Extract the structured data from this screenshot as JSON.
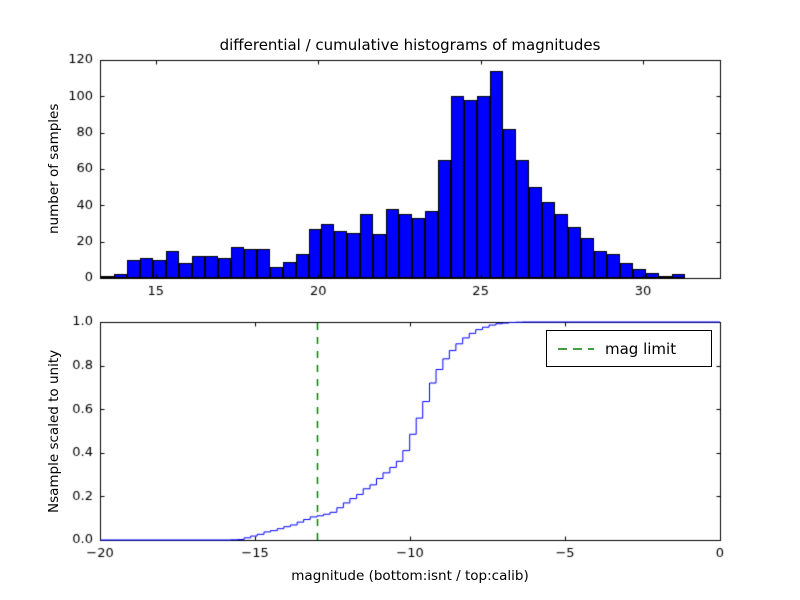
{
  "figure": {
    "background": "#ffffff",
    "frame_color": "#000000"
  },
  "chart_data": [
    {
      "type": "bar",
      "name": "differential-histogram",
      "title": "differential / cumulative histograms of magnitudes",
      "ylabel": "number of samples",
      "bar_color": "#0000ff",
      "bar_edge_color": "#000000",
      "xlim": [
        13.28,
        32.37
      ],
      "ylim": [
        0,
        120
      ],
      "xticks": [
        15,
        20,
        25,
        30
      ],
      "xtick_labels": [
        "15",
        "20",
        "25",
        "30"
      ],
      "yticks": [
        0,
        20,
        40,
        60,
        80,
        100,
        120
      ],
      "ytick_labels": [
        "0",
        "20",
        "40",
        "60",
        "80",
        "100",
        "120"
      ],
      "bin_start": 13.3,
      "bin_width": 0.4,
      "counts": [
        1,
        2,
        10,
        11,
        10,
        15,
        8,
        12,
        12,
        11,
        17,
        16,
        16,
        6,
        9,
        13,
        27,
        30,
        26,
        25,
        35,
        24,
        38,
        35,
        33,
        37,
        65,
        100,
        98,
        100,
        114,
        82,
        65,
        50,
        42,
        35,
        28,
        22,
        15,
        13,
        8,
        5,
        3,
        1,
        2
      ],
      "grid": false
    },
    {
      "type": "line",
      "name": "cumulative-histogram",
      "ylabel": "Nsample scaled to unity",
      "xlabel": "magnitude (bottom:isnt / top:calib)",
      "line_color": "#0000ff",
      "xlim": [
        -20,
        0
      ],
      "ylim": [
        0,
        1
      ],
      "xticks": [
        -20,
        -15,
        -10,
        -5,
        0
      ],
      "xtick_labels": [
        "−20",
        "−15",
        "−10",
        "−5",
        "0"
      ],
      "yticks": [
        0,
        0.2,
        0.4,
        0.6,
        0.8,
        1.0
      ],
      "ytick_labels": [
        "0.0",
        "0.2",
        "0.4",
        "0.6",
        "0.8",
        "1.0"
      ],
      "edges_x": [
        -15.78,
        -15.57,
        -15.35,
        -15.14,
        -14.93,
        -14.71,
        -14.5,
        -14.28,
        -14.07,
        -13.86,
        -13.64,
        -13.43,
        -13.22,
        -13.0,
        -12.79,
        -12.58,
        -12.36,
        -12.15,
        -11.94,
        -11.72,
        -11.51,
        -11.29,
        -11.08,
        -10.87,
        -10.65,
        -10.44,
        -10.23,
        -10.01,
        -9.8,
        -9.59,
        -9.37,
        -9.16,
        -8.94,
        -8.73,
        -8.52,
        -8.3,
        -8.09,
        -7.88,
        -7.66,
        -7.45,
        -7.23,
        -7.02,
        -6.81,
        -6.59,
        -6.38,
        -6.17
      ],
      "fractions": [
        0.001,
        0.002,
        0.01,
        0.018,
        0.026,
        0.037,
        0.043,
        0.052,
        0.061,
        0.069,
        0.082,
        0.094,
        0.106,
        0.111,
        0.118,
        0.127,
        0.148,
        0.17,
        0.19,
        0.209,
        0.235,
        0.253,
        0.282,
        0.308,
        0.333,
        0.361,
        0.41,
        0.485,
        0.559,
        0.635,
        0.72,
        0.782,
        0.831,
        0.869,
        0.9,
        0.927,
        0.948,
        0.965,
        0.976,
        0.986,
        0.992,
        0.995,
        0.998,
        0.999,
        1.0
      ],
      "mag_limit": {
        "x": -13,
        "color": "#008000",
        "style": "dashed",
        "label": "mag limit"
      },
      "legend_position": "upper right",
      "grid": false
    }
  ]
}
